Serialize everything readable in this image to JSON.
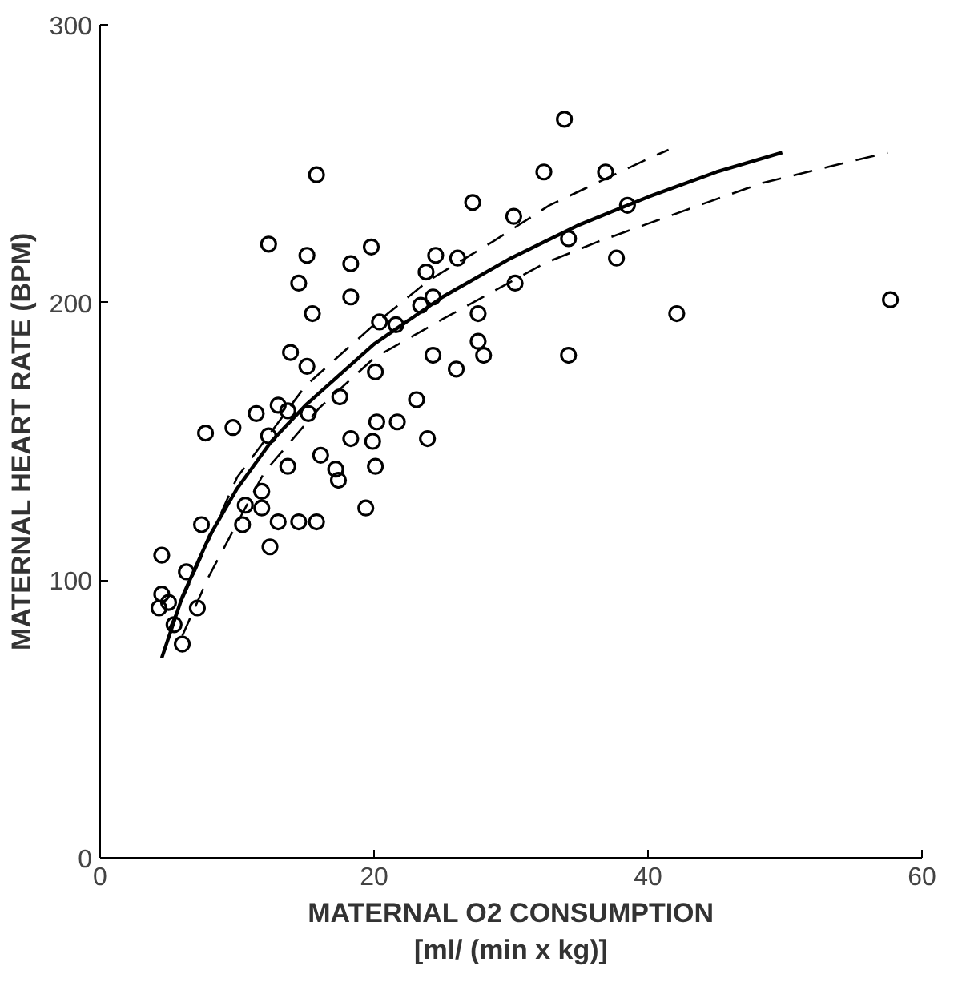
{
  "chart_data": {
    "type": "scatter",
    "xlabel": "MATERNAL O2 CONSUMPTION\n[ml/ (min x kg)]",
    "ylabel": "MATERNAL HEART RATE (BPM)",
    "xlim": [
      0,
      60
    ],
    "ylim": [
      0,
      300
    ],
    "xticks": [
      0,
      20,
      40,
      60
    ],
    "yticks": [
      0,
      100,
      200,
      300
    ],
    "grid": false,
    "marker": "circle",
    "series": [
      {
        "color": "#000000",
        "x": [
          15.8,
          12.3,
          15.1,
          18.3,
          19.8,
          14.5,
          15.5,
          18.3,
          20.4,
          13.9,
          15.1,
          20.1,
          17.5,
          13.0,
          11.4,
          15.2,
          13.7,
          20.2,
          9.7,
          7.7,
          18.3,
          19.9,
          16.1,
          17.2,
          13.7,
          20.1,
          12.3,
          17.4,
          11.8,
          10.6,
          11.8,
          19.4,
          7.4,
          10.4,
          13.0,
          14.5,
          15.8,
          12.4,
          4.5,
          6.3,
          4.5,
          4.3,
          7.1,
          5.4,
          6.0,
          5.0,
          37.7,
          42.1,
          57.7,
          33.9,
          32.4,
          36.9,
          27.2,
          30.2,
          38.5,
          24.5,
          26.1,
          23.8,
          34.2,
          24.3,
          23.4,
          30.3,
          27.6,
          27.6,
          28.0,
          24.3,
          26.0,
          34.2,
          23.1,
          21.7,
          23.9,
          21.6
        ],
        "values": [
          246,
          221,
          217,
          214,
          220,
          207,
          196,
          202,
          193,
          182,
          177,
          175,
          166,
          163,
          160,
          160,
          161,
          157,
          155,
          153,
          151,
          150,
          145,
          140,
          141,
          141,
          152,
          136,
          132,
          127,
          126,
          126,
          120,
          120,
          121,
          121,
          121,
          112,
          109,
          103,
          95,
          90,
          90,
          84,
          77,
          92,
          216,
          196,
          201,
          266,
          247,
          247,
          236,
          231,
          235,
          217,
          216,
          211,
          223,
          202,
          199,
          207,
          196,
          186,
          181,
          181,
          176,
          181,
          165,
          157,
          151,
          192
        ]
      },
      {
        "type": "line",
        "color": "#000000",
        "line_style": "solid",
        "marker": "none",
        "x": [
          4.5,
          6,
          8,
          10,
          12.5,
          15,
          20,
          25,
          30,
          35,
          40,
          45,
          49.8
        ],
        "values": [
          72,
          94,
          116,
          133,
          150,
          163,
          185,
          202,
          216,
          228,
          238,
          247,
          254
        ]
      },
      {
        "type": "line",
        "color": "#000000",
        "line_style": "dashed",
        "marker": "none",
        "x": [
          5,
          10,
          15,
          20,
          24,
          28.7,
          32.8,
          40.1,
          41.5
        ],
        "values": [
          82,
          137,
          170,
          192,
          208,
          222,
          235,
          252,
          255
        ]
      },
      {
        "type": "line",
        "color": "#000000",
        "line_style": "dashed",
        "marker": "none",
        "x": [
          6,
          7.9,
          12,
          16,
          20,
          25,
          28.7,
          32.4,
          36.4,
          44.3,
          48.3,
          53.3,
          57.5
        ],
        "values": [
          80,
          101,
          139,
          162,
          180,
          194,
          204,
          214,
          222,
          236,
          243,
          249,
          254
        ]
      }
    ]
  }
}
